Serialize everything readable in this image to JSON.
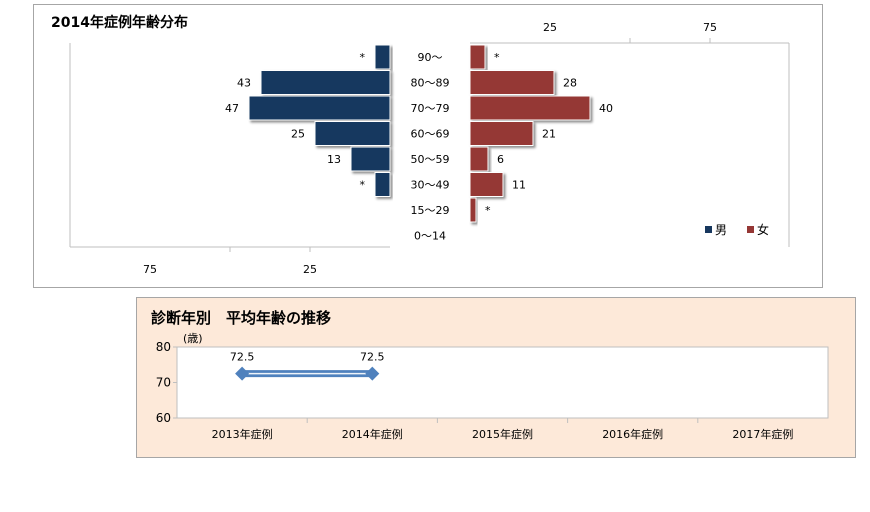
{
  "chart_data": [
    {
      "type": "bar",
      "orientation": "horizontal-population-pyramid",
      "title": "2014年症例年齢分布",
      "categories": [
        "90～",
        "80～89",
        "70～79",
        "60～69",
        "50～59",
        "30～49",
        "15～29",
        "0～14"
      ],
      "series": [
        {
          "name": "男",
          "color": "#17375e",
          "values": [
            5,
            43,
            47,
            25,
            13,
            5,
            null,
            null
          ],
          "labels": [
            "*",
            "43",
            "47",
            "25",
            "13",
            "*",
            "",
            ""
          ]
        },
        {
          "name": "女",
          "color": "#953735",
          "values": [
            5,
            28,
            40,
            21,
            6,
            11,
            2,
            null
          ],
          "labels": [
            "*",
            "28",
            "40",
            "21",
            "6",
            "11",
            "*",
            ""
          ]
        }
      ],
      "top_ticks": [
        "25",
        "75"
      ],
      "bottom_ticks": [
        "75",
        "25"
      ],
      "legend": "bottom-right",
      "grid": false
    },
    {
      "type": "line",
      "title": "診断年別　平均年齢の推移",
      "ylabel": "(歳)",
      "ylim": [
        60,
        80
      ],
      "yticks": [
        "60",
        "70",
        "80"
      ],
      "categories": [
        "2013年症例",
        "2014年症例",
        "2015年症例",
        "2016年症例",
        "2017年症例"
      ],
      "series": [
        {
          "values": [
            72.5,
            72.5,
            null,
            null,
            null
          ],
          "labels": [
            "72.5",
            "72.5",
            "",
            "",
            ""
          ],
          "color": "#4f81bd"
        }
      ],
      "grid": false
    }
  ]
}
